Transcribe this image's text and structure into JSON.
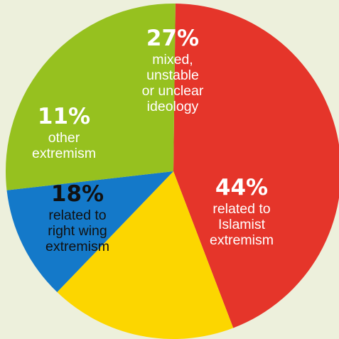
{
  "chart_data": {
    "type": "pie",
    "slices": [
      {
        "key": "islamist",
        "value": 44,
        "percent_label": "44%",
        "description": [
          "related to",
          "Islamist",
          "extremism"
        ],
        "color": "#e5352a",
        "text_color": "#ffffff"
      },
      {
        "key": "right-wing",
        "value": 18,
        "percent_label": "18%",
        "description": [
          "related to",
          "right wing",
          "extremism"
        ],
        "color": "#fcd600",
        "text_color": "#111111"
      },
      {
        "key": "other",
        "value": 11,
        "percent_label": "11%",
        "description": [
          "other",
          "extremism"
        ],
        "color": "#1479c9",
        "text_color": "#ffffff"
      },
      {
        "key": "mixed",
        "value": 27,
        "percent_label": "27%",
        "description": [
          "mixed,",
          "unstable",
          "or unclear",
          "ideology"
        ],
        "color": "#96c11f",
        "text_color": "#ffffff"
      }
    ]
  }
}
